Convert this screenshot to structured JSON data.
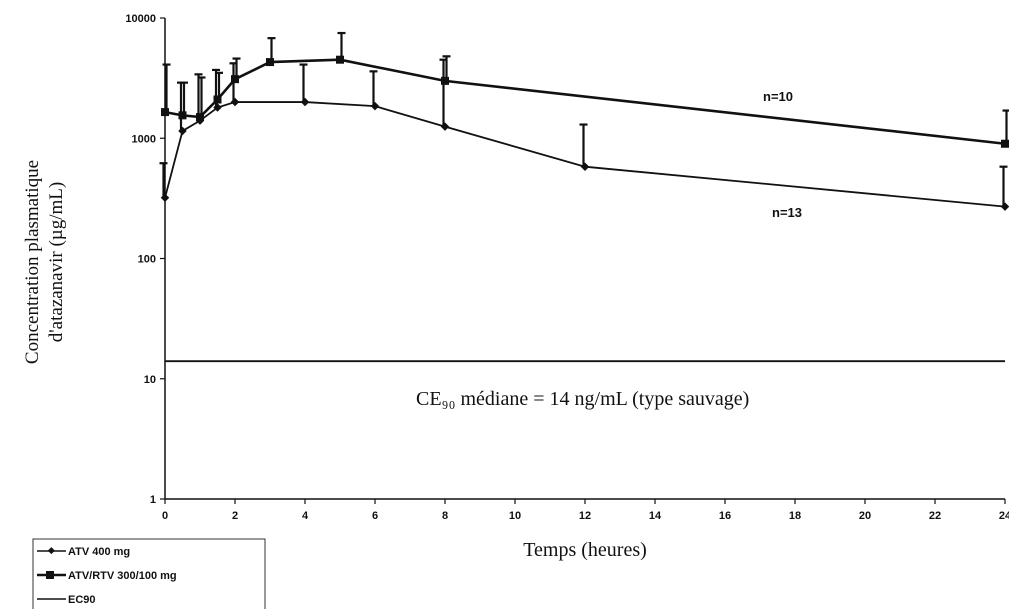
{
  "chart_data": {
    "type": "line",
    "xlabel": "Temps (heures)",
    "ylabel": [
      "Concentration plasmatique",
      "d'atazanavir (µg/mL)"
    ],
    "xlim": [
      0,
      24
    ],
    "ylim": [
      1,
      10000
    ],
    "y_scale": "log",
    "x_ticks": [
      0,
      2,
      4,
      6,
      8,
      10,
      12,
      14,
      16,
      18,
      20,
      22,
      24
    ],
    "y_ticks": [
      1,
      10,
      100,
      1000,
      10000
    ],
    "x_tick_labels": [
      "0",
      "2",
      "4",
      "6",
      "8",
      "10",
      "12",
      "14",
      "16",
      "18",
      "20",
      "22",
      "24"
    ],
    "y_tick_labels": [
      "1",
      "10",
      "100",
      "1000",
      "10000"
    ],
    "grid": false,
    "legend_position": "bottom-left",
    "series": [
      {
        "name": "ATV 400 mg",
        "marker": "diamond",
        "x": [
          0,
          0.5,
          1,
          1.5,
          2,
          4,
          6,
          8,
          12,
          24
        ],
        "y": [
          320,
          1150,
          1400,
          1800,
          2000,
          2000,
          1850,
          1250,
          580,
          270
        ],
        "err_upper": [
          620,
          2900,
          3400,
          3700,
          4200,
          4100,
          3600,
          4500,
          1300,
          580
        ],
        "annotation": "n=13"
      },
      {
        "name": "ATV/RTV 300/100 mg",
        "marker": "square",
        "x": [
          0,
          0.5,
          1,
          1.5,
          2,
          3,
          5,
          8,
          24
        ],
        "y": [
          1650,
          1550,
          1500,
          2100,
          3100,
          4300,
          4500,
          3000,
          900
        ],
        "err_upper": [
          4100,
          2900,
          3200,
          3500,
          4600,
          6800,
          7500,
          4800,
          1700
        ],
        "annotation": "n=10"
      },
      {
        "name": "EC90",
        "marker": "none",
        "x": [
          0,
          24
        ],
        "y": [
          14,
          14
        ]
      }
    ],
    "ec90_label": "CE₉₀ médiane = 14 ng/mL (type sauvage)"
  }
}
